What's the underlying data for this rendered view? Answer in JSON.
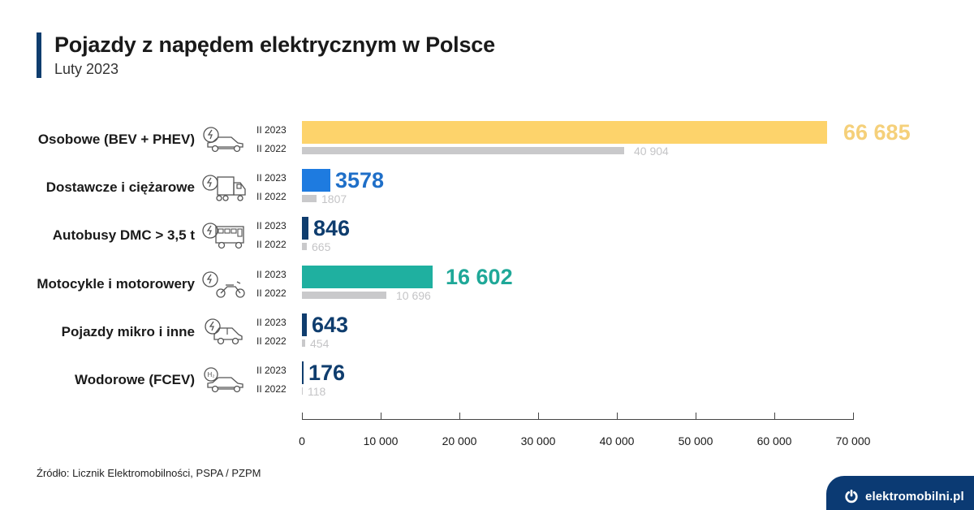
{
  "header": {
    "title": "Pojazdy z napędem elektrycznym w Polsce",
    "subtitle": "Luty 2023"
  },
  "rows": [
    {
      "label": "Osobowe (BEV + PHEV)",
      "icon": "electric-car-icon",
      "y2023_label": "II 2023",
      "y2022_label": "II 2022",
      "v2023": "66 685",
      "v2022": "40 904",
      "color": "#fdd36b",
      "text_color": "#f5d07a"
    },
    {
      "label": "Dostawcze i ciężarowe",
      "icon": "electric-truck-icon",
      "y2023_label": "II 2023",
      "y2022_label": "II 2022",
      "v2023": "3578",
      "v2022": "1807",
      "color": "#1e7be0",
      "text_color": "#1f6fc8"
    },
    {
      "label": "Autobusy DMC > 3,5 t",
      "icon": "electric-bus-icon",
      "y2023_label": "II 2023",
      "y2022_label": "II 2022",
      "v2023": "846",
      "v2022": "665",
      "color": "#0f3d6e",
      "text_color": "#0f3d6e"
    },
    {
      "label": "Motocykle i motorowery",
      "icon": "electric-motorcycle-icon",
      "y2023_label": "II 2023",
      "y2022_label": "II 2022",
      "v2023": "16 602",
      "v2022": "10 696",
      "color": "#1fb0a0",
      "text_color": "#1fa898"
    },
    {
      "label": "Pojazdy mikro i inne",
      "icon": "electric-microcar-icon",
      "y2023_label": "II 2023",
      "y2022_label": "II 2022",
      "v2023": "643",
      "v2022": "454",
      "color": "#0f3d6e",
      "text_color": "#0f3d6e"
    },
    {
      "label": "Wodorowe (FCEV)",
      "icon": "hydrogen-car-icon",
      "y2023_label": "II 2023",
      "y2022_label": "II 2022",
      "v2023": "176",
      "v2022": "118",
      "color": "#0f3d6e",
      "text_color": "#0f3d6e"
    }
  ],
  "axis": {
    "ticks": [
      "0",
      "10 000",
      "20 000",
      "30 000",
      "40 000",
      "50 000",
      "60 000",
      "70 000"
    ]
  },
  "footer": {
    "source": "Źródło: Licznik Elektromobilności, PSPA / PZPM",
    "brand": "elektromobilni.pl"
  },
  "chart_data": {
    "type": "bar",
    "orientation": "horizontal",
    "title": "Pojazdy z napędem elektrycznym w Polsce",
    "subtitle": "Luty 2023",
    "categories": [
      "Osobowe (BEV + PHEV)",
      "Dostawcze i ciężarowe",
      "Autobusy DMC > 3,5 t",
      "Motocykle i motorowery",
      "Pojazdy mikro i inne",
      "Wodorowe (FCEV)"
    ],
    "series": [
      {
        "name": "II 2023",
        "values": [
          66685,
          3578,
          846,
          16602,
          643,
          176
        ],
        "colors": [
          "#fdd36b",
          "#1e7be0",
          "#0f3d6e",
          "#1fb0a0",
          "#0f3d6e",
          "#0f3d6e"
        ]
      },
      {
        "name": "II 2022",
        "values": [
          40904,
          1807,
          665,
          10696,
          454,
          118
        ],
        "color": "#c9c9cb"
      }
    ],
    "xlabel": "",
    "ylabel": "",
    "xlim": [
      0,
      70000
    ],
    "xticks": [
      0,
      10000,
      20000,
      30000,
      40000,
      50000,
      60000,
      70000
    ],
    "grid": false,
    "legend": "inline per-row year labels",
    "source": "Źródło: Licznik Elektromobilności, PSPA / PZPM"
  }
}
